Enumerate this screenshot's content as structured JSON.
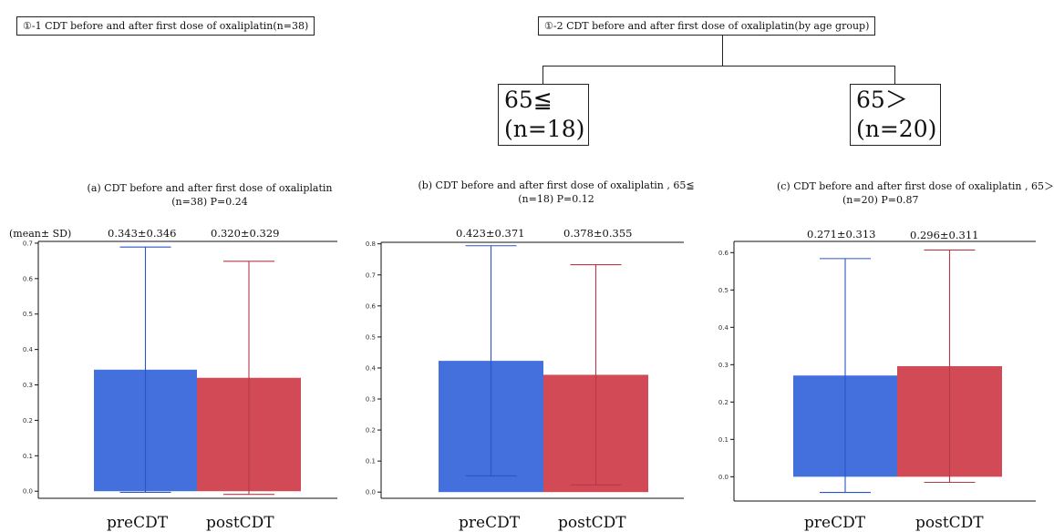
{
  "header": {
    "box1": "①-1 CDT before and after first dose of oxaliplatin(n=38)",
    "box2": "①-2 CDT before and after first dose of oxaliplatin(by age group)"
  },
  "age_groups": [
    {
      "line1": "65≦",
      "line2": "(n=18)"
    },
    {
      "line1": "65＞",
      "line2": "(n=20)"
    }
  ],
  "mean_sd_label": "(mean± SD)",
  "colors": {
    "pre": "#4470dd",
    "post": "#d34a57",
    "pre_err": "#2a55c8",
    "post_err": "#b53a48"
  },
  "chart_data": [
    {
      "type": "bar",
      "title": "(a) CDT before and after first dose of oxaliplatin",
      "subtitle": "(n=38)  P=0.24",
      "categories": [
        "preCDT",
        "postCDT"
      ],
      "values": [
        0.343,
        0.32
      ],
      "sd": [
        0.346,
        0.329
      ],
      "labels": [
        "0.343±0.346",
        "0.320±0.329"
      ],
      "ylim": [
        -0.02,
        0.705
      ],
      "yticks": [
        0.0,
        0.1,
        0.2,
        0.3,
        0.4,
        0.5,
        0.6,
        0.7
      ]
    },
    {
      "type": "bar",
      "title": "(b) CDT before and after first dose of oxaliplatin , 65≦",
      "subtitle": "(n=18)  P=0.12",
      "categories": [
        "preCDT",
        "postCDT"
      ],
      "values": [
        0.423,
        0.378
      ],
      "sd": [
        0.371,
        0.355
      ],
      "labels": [
        "0.423±0.371",
        "0.378±0.355"
      ],
      "ylim": [
        -0.02,
        0.805
      ],
      "yticks": [
        0.0,
        0.1,
        0.2,
        0.3,
        0.4,
        0.5,
        0.6,
        0.7,
        0.8
      ]
    },
    {
      "type": "bar",
      "title": "(c) CDT before and after first dose of oxaliplatin , 65＞",
      "subtitle": "(n=20)  P=0.87",
      "categories": [
        "preCDT",
        "postCDT"
      ],
      "values": [
        0.271,
        0.296
      ],
      "sd": [
        0.313,
        0.311
      ],
      "labels": [
        "0.271±0.313",
        "0.296±0.311"
      ],
      "ylim": [
        -0.065,
        0.63
      ],
      "yticks": [
        0.0,
        0.1,
        0.2,
        0.3,
        0.4,
        0.5,
        0.6
      ]
    }
  ]
}
